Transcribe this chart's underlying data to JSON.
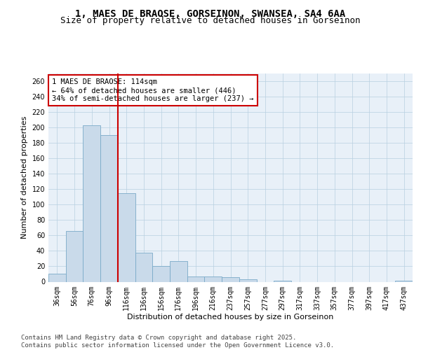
{
  "title_line1": "1, MAES DE BRAOSE, GORSEINON, SWANSEA, SA4 6AA",
  "title_line2": "Size of property relative to detached houses in Gorseinon",
  "xlabel": "Distribution of detached houses by size in Gorseinon",
  "ylabel": "Number of detached properties",
  "categories": [
    "36sqm",
    "56sqm",
    "76sqm",
    "96sqm",
    "116sqm",
    "136sqm",
    "156sqm",
    "176sqm",
    "196sqm",
    "216sqm",
    "237sqm",
    "257sqm",
    "277sqm",
    "297sqm",
    "317sqm",
    "337sqm",
    "357sqm",
    "377sqm",
    "397sqm",
    "417sqm",
    "437sqm"
  ],
  "values": [
    10,
    66,
    203,
    190,
    115,
    38,
    20,
    27,
    7,
    7,
    6,
    3,
    0,
    1,
    0,
    0,
    0,
    0,
    0,
    0,
    1
  ],
  "bar_color": "#c9daea",
  "bar_edge_color": "#7aaac8",
  "grid_color": "#b8cfe0",
  "background_color": "#ffffff",
  "plot_bg_color": "#e8f0f8",
  "annotation_text": "1 MAES DE BRAOSE: 114sqm\n← 64% of detached houses are smaller (446)\n34% of semi-detached houses are larger (237) →",
  "annotation_box_facecolor": "#ffffff",
  "annotation_box_edgecolor": "#cc0000",
  "vline_color": "#cc0000",
  "vline_x": 3.5,
  "ylim": [
    0,
    270
  ],
  "yticks": [
    0,
    20,
    40,
    60,
    80,
    100,
    120,
    140,
    160,
    180,
    200,
    220,
    240,
    260
  ],
  "footer_text": "Contains HM Land Registry data © Crown copyright and database right 2025.\nContains public sector information licensed under the Open Government Licence v3.0.",
  "title_fontsize": 10,
  "subtitle_fontsize": 9,
  "axis_label_fontsize": 8,
  "tick_fontsize": 7,
  "annotation_fontsize": 7.5,
  "footer_fontsize": 6.5
}
